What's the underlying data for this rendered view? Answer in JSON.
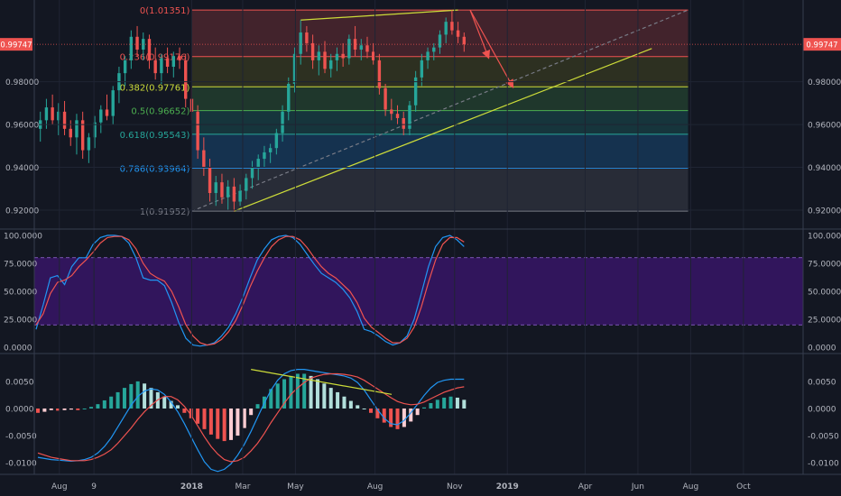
{
  "chart_data": [
    {
      "type": "candlestick",
      "panel": "price",
      "title": "",
      "yticks": [
        "0.98000",
        "0.96000",
        "0.94000",
        "0.92000"
      ],
      "ylim": [
        0.912,
        1.0165
      ],
      "last_price_label": "0.99747",
      "last_price": 0.99747,
      "up_color": "#26a69a",
      "down_color": "#ef5350",
      "fib_levels": [
        {
          "ratio": 0,
          "value": 1.01351,
          "label": "0(1.01351)",
          "color": "#ef5350"
        },
        {
          "ratio": 0.236,
          "value": 0.99176,
          "label": "0.236(0.99176)",
          "color": "#ef5350"
        },
        {
          "ratio": 0.382,
          "value": 0.97761,
          "label": "0.382(0.97761)",
          "color": "#cddc39"
        },
        {
          "ratio": 0.5,
          "value": 0.96652,
          "label": "0.5(0.96652)",
          "color": "#4caf50"
        },
        {
          "ratio": 0.618,
          "value": 0.95543,
          "label": "0.618(0.95543)",
          "color": "#26a69a"
        },
        {
          "ratio": 0.786,
          "value": 0.93964,
          "label": "0.786(0.93964)",
          "color": "#2196f3"
        },
        {
          "ratio": 1,
          "value": 0.91952,
          "label": "1(0.91952)",
          "color": "#787b86"
        }
      ],
      "trend_lines": [
        {
          "from": [
            "2018-02-19",
            0.9195
          ],
          "to": [
            "2019-06-17",
            0.9955
          ],
          "color": "#cddc39"
        },
        {
          "from": [
            "2018-05-07",
            1.0088
          ],
          "to": [
            "2018-11-05",
            1.0135
          ],
          "color": "#cddc39"
        },
        {
          "from": [
            "2018-01-01",
            0.9195
          ],
          "to": [
            "2019-07-29",
            1.0135
          ],
          "color": "#787b86",
          "dashed": true
        }
      ],
      "arrows": [
        {
          "from": [
            "2018-11-19",
            1.0135
          ],
          "to": [
            "2018-12-10",
            0.9915
          ]
        },
        {
          "from": [
            "2018-11-19",
            1.0135
          ],
          "to": [
            "2019-01-07",
            0.9778
          ]
        }
      ],
      "candles": [
        {
          "t": "2017-07-10",
          "o": 0.958,
          "h": 0.966,
          "l": 0.952,
          "c": 0.962
        },
        {
          "t": "2017-07-17",
          "o": 0.962,
          "h": 0.972,
          "l": 0.958,
          "c": 0.968
        },
        {
          "t": "2017-07-24",
          "o": 0.968,
          "h": 0.974,
          "l": 0.96,
          "c": 0.962
        },
        {
          "t": "2017-07-31",
          "o": 0.962,
          "h": 0.97,
          "l": 0.955,
          "c": 0.966
        },
        {
          "t": "2017-08-07",
          "o": 0.966,
          "h": 0.971,
          "l": 0.955,
          "c": 0.958
        },
        {
          "t": "2017-08-14",
          "o": 0.958,
          "h": 0.962,
          "l": 0.95,
          "c": 0.954
        },
        {
          "t": "2017-08-21",
          "o": 0.954,
          "h": 0.965,
          "l": 0.946,
          "c": 0.962
        },
        {
          "t": "2017-08-28",
          "o": 0.962,
          "h": 0.966,
          "l": 0.944,
          "c": 0.948
        },
        {
          "t": "2017-09-04",
          "o": 0.948,
          "h": 0.956,
          "l": 0.942,
          "c": 0.954
        },
        {
          "t": "2017-09-11",
          "o": 0.954,
          "h": 0.964,
          "l": 0.949,
          "c": 0.961
        },
        {
          "t": "2017-09-18",
          "o": 0.961,
          "h": 0.969,
          "l": 0.956,
          "c": 0.967
        },
        {
          "t": "2017-09-25",
          "o": 0.967,
          "h": 0.974,
          "l": 0.962,
          "c": 0.964
        },
        {
          "t": "2017-10-02",
          "o": 0.964,
          "h": 0.978,
          "l": 0.96,
          "c": 0.976
        },
        {
          "t": "2017-10-09",
          "o": 0.976,
          "h": 0.987,
          "l": 0.97,
          "c": 0.984
        },
        {
          "t": "2017-10-16",
          "o": 0.984,
          "h": 0.992,
          "l": 0.978,
          "c": 0.99
        },
        {
          "t": "2017-10-23",
          "o": 0.99,
          "h": 1.004,
          "l": 0.986,
          "c": 1.001
        },
        {
          "t": "2017-10-30",
          "o": 1.001,
          "h": 1.006,
          "l": 0.992,
          "c": 0.995
        },
        {
          "t": "2017-11-06",
          "o": 0.995,
          "h": 1.003,
          "l": 0.99,
          "c": 1.0
        },
        {
          "t": "2017-11-13",
          "o": 1.0,
          "h": 1.002,
          "l": 0.986,
          "c": 0.99
        },
        {
          "t": "2017-11-20",
          "o": 0.99,
          "h": 0.996,
          "l": 0.981,
          "c": 0.984
        },
        {
          "t": "2017-11-27",
          "o": 0.984,
          "h": 0.993,
          "l": 0.979,
          "c": 0.991
        },
        {
          "t": "2017-12-04",
          "o": 0.991,
          "h": 0.996,
          "l": 0.984,
          "c": 0.987
        },
        {
          "t": "2017-12-11",
          "o": 0.987,
          "h": 0.994,
          "l": 0.982,
          "c": 0.992
        },
        {
          "t": "2017-12-18",
          "o": 0.992,
          "h": 0.996,
          "l": 0.986,
          "c": 0.99
        },
        {
          "t": "2017-12-25",
          "o": 0.99,
          "h": 0.993,
          "l": 0.968,
          "c": 0.972
        },
        {
          "t": "2018-01-01",
          "o": 0.972,
          "h": 0.978,
          "l": 0.962,
          "c": 0.966
        },
        {
          "t": "2018-01-08",
          "o": 0.966,
          "h": 0.969,
          "l": 0.944,
          "c": 0.948
        },
        {
          "t": "2018-01-15",
          "o": 0.948,
          "h": 0.954,
          "l": 0.936,
          "c": 0.94
        },
        {
          "t": "2018-01-22",
          "o": 0.94,
          "h": 0.944,
          "l": 0.924,
          "c": 0.928
        },
        {
          "t": "2018-01-29",
          "o": 0.928,
          "h": 0.936,
          "l": 0.922,
          "c": 0.933
        },
        {
          "t": "2018-02-05",
          "o": 0.933,
          "h": 0.937,
          "l": 0.923,
          "c": 0.926
        },
        {
          "t": "2018-02-12",
          "o": 0.926,
          "h": 0.934,
          "l": 0.92,
          "c": 0.931
        },
        {
          "t": "2018-02-19",
          "o": 0.931,
          "h": 0.935,
          "l": 0.9195,
          "c": 0.924
        },
        {
          "t": "2018-02-26",
          "o": 0.924,
          "h": 0.932,
          "l": 0.922,
          "c": 0.929
        },
        {
          "t": "2018-03-05",
          "o": 0.929,
          "h": 0.937,
          "l": 0.925,
          "c": 0.935
        },
        {
          "t": "2018-03-12",
          "o": 0.935,
          "h": 0.943,
          "l": 0.93,
          "c": 0.94
        },
        {
          "t": "2018-03-19",
          "o": 0.94,
          "h": 0.946,
          "l": 0.934,
          "c": 0.944
        },
        {
          "t": "2018-03-26",
          "o": 0.944,
          "h": 0.95,
          "l": 0.94,
          "c": 0.947
        },
        {
          "t": "2018-04-02",
          "o": 0.947,
          "h": 0.951,
          "l": 0.942,
          "c": 0.949
        },
        {
          "t": "2018-04-09",
          "o": 0.949,
          "h": 0.958,
          "l": 0.946,
          "c": 0.956
        },
        {
          "t": "2018-04-16",
          "o": 0.956,
          "h": 0.969,
          "l": 0.952,
          "c": 0.966
        },
        {
          "t": "2018-04-23",
          "o": 0.966,
          "h": 0.982,
          "l": 0.962,
          "c": 0.979
        },
        {
          "t": "2018-04-30",
          "o": 0.979,
          "h": 0.996,
          "l": 0.975,
          "c": 0.993
        },
        {
          "t": "2018-05-07",
          "o": 0.993,
          "h": 1.0088,
          "l": 0.988,
          "c": 1.003
        },
        {
          "t": "2018-05-14",
          "o": 1.003,
          "h": 1.006,
          "l": 0.994,
          "c": 0.998
        },
        {
          "t": "2018-05-21",
          "o": 0.998,
          "h": 1.002,
          "l": 0.986,
          "c": 0.99
        },
        {
          "t": "2018-05-28",
          "o": 0.99,
          "h": 0.997,
          "l": 0.983,
          "c": 0.994
        },
        {
          "t": "2018-06-04",
          "o": 0.994,
          "h": 0.999,
          "l": 0.984,
          "c": 0.986
        },
        {
          "t": "2018-06-11",
          "o": 0.986,
          "h": 0.993,
          "l": 0.982,
          "c": 0.99
        },
        {
          "t": "2018-06-18",
          "o": 0.99,
          "h": 0.996,
          "l": 0.985,
          "c": 0.993
        },
        {
          "t": "2018-06-25",
          "o": 0.993,
          "h": 0.998,
          "l": 0.987,
          "c": 0.991
        },
        {
          "t": "2018-07-02",
          "o": 0.991,
          "h": 1.002,
          "l": 0.988,
          "c": 1.0
        },
        {
          "t": "2018-07-09",
          "o": 1.0,
          "h": 1.006,
          "l": 0.992,
          "c": 0.995
        },
        {
          "t": "2018-07-16",
          "o": 0.995,
          "h": 1.0,
          "l": 0.99,
          "c": 0.997
        },
        {
          "t": "2018-07-23",
          "o": 0.997,
          "h": 1.001,
          "l": 0.991,
          "c": 0.994
        },
        {
          "t": "2018-07-30",
          "o": 0.994,
          "h": 0.998,
          "l": 0.988,
          "c": 0.99
        },
        {
          "t": "2018-08-06",
          "o": 0.99,
          "h": 0.993,
          "l": 0.974,
          "c": 0.977
        },
        {
          "t": "2018-08-13",
          "o": 0.977,
          "h": 0.979,
          "l": 0.964,
          "c": 0.967
        },
        {
          "t": "2018-08-20",
          "o": 0.967,
          "h": 0.972,
          "l": 0.962,
          "c": 0.965
        },
        {
          "t": "2018-08-27",
          "o": 0.965,
          "h": 0.969,
          "l": 0.96,
          "c": 0.963
        },
        {
          "t": "2018-09-03",
          "o": 0.963,
          "h": 0.966,
          "l": 0.955,
          "c": 0.958
        },
        {
          "t": "2018-09-10",
          "o": 0.958,
          "h": 0.971,
          "l": 0.955,
          "c": 0.969
        },
        {
          "t": "2018-09-17",
          "o": 0.969,
          "h": 0.985,
          "l": 0.966,
          "c": 0.982
        },
        {
          "t": "2018-09-24",
          "o": 0.982,
          "h": 0.993,
          "l": 0.978,
          "c": 0.99
        },
        {
          "t": "2018-10-01",
          "o": 0.99,
          "h": 0.996,
          "l": 0.986,
          "c": 0.994
        },
        {
          "t": "2018-10-08",
          "o": 0.994,
          "h": 0.998,
          "l": 0.99,
          "c": 0.996
        },
        {
          "t": "2018-10-15",
          "o": 0.996,
          "h": 1.004,
          "l": 0.993,
          "c": 1.002
        },
        {
          "t": "2018-10-22",
          "o": 1.002,
          "h": 1.01,
          "l": 0.998,
          "c": 1.008
        },
        {
          "t": "2018-10-29",
          "o": 1.008,
          "h": 1.0135,
          "l": 1.002,
          "c": 1.004
        },
        {
          "t": "2018-11-05",
          "o": 1.004,
          "h": 1.008,
          "l": 0.998,
          "c": 1.001
        },
        {
          "t": "2018-11-12",
          "o": 1.001,
          "h": 1.003,
          "l": 0.994,
          "c": 0.9975
        }
      ]
    },
    {
      "type": "line",
      "panel": "stochastic",
      "yticks": [
        "100.0000",
        "75.0000",
        "50.0000",
        "25.0000",
        "0.0000"
      ],
      "ylim": [
        -4,
        104
      ],
      "bands": [
        20,
        80
      ],
      "band_color": "#4a148c",
      "series": [
        {
          "color": "#2196f3",
          "values": [
            16,
            38,
            62,
            64,
            56,
            72,
            80,
            80,
            92,
            98,
            100,
            100,
            99,
            93,
            80,
            62,
            60,
            60,
            55,
            40,
            22,
            8,
            2,
            1,
            2,
            4,
            10,
            18,
            30,
            45,
            62,
            78,
            88,
            96,
            99,
            100,
            98,
            92,
            83,
            74,
            66,
            62,
            58,
            52,
            44,
            32,
            16,
            14,
            10,
            5,
            2,
            4,
            10,
            25,
            48,
            72,
            90,
            98,
            100,
            96,
            90
          ]
        },
        {
          "color": "#ef5350",
          "values": [
            20,
            30,
            48,
            58,
            60,
            64,
            72,
            78,
            85,
            93,
            98,
            99,
            99,
            96,
            88,
            75,
            66,
            62,
            59,
            50,
            36,
            20,
            10,
            4,
            2,
            3,
            7,
            14,
            24,
            38,
            54,
            68,
            80,
            90,
            96,
            99,
            99,
            96,
            89,
            80,
            72,
            66,
            62,
            56,
            50,
            40,
            26,
            18,
            13,
            8,
            4,
            4,
            8,
            18,
            36,
            58,
            78,
            92,
            98,
            98,
            94
          ]
        }
      ]
    },
    {
      "type": "histogram+line",
      "panel": "macd",
      "yticks": [
        "0.0050",
        "0.0000",
        "-0.0050",
        "-0.0100"
      ],
      "ylim": [
        -0.0118,
        0.0098
      ],
      "histogram": [
        -0.0008,
        -0.0006,
        -0.0003,
        -0.0004,
        -0.0003,
        -0.0002,
        -0.0003,
        0.0,
        0.0003,
        0.0008,
        0.0015,
        0.0022,
        0.003,
        0.0038,
        0.0045,
        0.005,
        0.0046,
        0.0038,
        0.003,
        0.0022,
        0.0014,
        0.0006,
        -0.0008,
        -0.0018,
        -0.0028,
        -0.0038,
        -0.0048,
        -0.0056,
        -0.006,
        -0.0058,
        -0.005,
        -0.0036,
        -0.0012,
        0.0008,
        0.0022,
        0.0036,
        0.0046,
        0.0054,
        0.006,
        0.0064,
        0.0064,
        0.006,
        0.0054,
        0.0046,
        0.0038,
        0.003,
        0.0022,
        0.0014,
        0.0006,
        0.0,
        -0.0008,
        -0.0018,
        -0.0026,
        -0.0034,
        -0.0038,
        -0.0034,
        -0.0024,
        -0.0012,
        0.0002,
        0.001,
        0.0016,
        0.002,
        0.0022,
        0.002,
        0.0016
      ],
      "series": [
        {
          "color": "#2196f3",
          "values": [
            -0.009,
            -0.0092,
            -0.0094,
            -0.0095,
            -0.0096,
            -0.0097,
            -0.0096,
            -0.0094,
            -0.009,
            -0.0082,
            -0.007,
            -0.0054,
            -0.0034,
            -0.0014,
            0.0006,
            0.0022,
            0.0032,
            0.0036,
            0.0034,
            0.0026,
            0.0012,
            -0.0006,
            -0.0028,
            -0.0052,
            -0.0076,
            -0.0098,
            -0.0112,
            -0.0116,
            -0.0112,
            -0.0102,
            -0.0086,
            -0.0066,
            -0.0042,
            -0.0016,
            0.001,
            0.0034,
            0.0052,
            0.0064,
            0.007,
            0.0072,
            0.0072,
            0.007,
            0.0068,
            0.0066,
            0.0064,
            0.0062,
            0.006,
            0.0056,
            0.0048,
            0.0034,
            0.0016,
            -0.0002,
            -0.0018,
            -0.0028,
            -0.003,
            -0.0022,
            -0.0008,
            0.0008,
            0.0024,
            0.0038,
            0.0048,
            0.0052,
            0.0054,
            0.0054,
            0.0054
          ]
        },
        {
          "color": "#ef5350",
          "values": [
            -0.0082,
            -0.0086,
            -0.009,
            -0.0092,
            -0.0094,
            -0.0096,
            -0.0096,
            -0.0096,
            -0.0094,
            -0.009,
            -0.0084,
            -0.0076,
            -0.0064,
            -0.005,
            -0.0036,
            -0.002,
            -0.0006,
            0.0006,
            0.0016,
            0.0022,
            0.0022,
            0.0016,
            0.0004,
            -0.0012,
            -0.0032,
            -0.0052,
            -0.007,
            -0.0084,
            -0.0094,
            -0.0098,
            -0.0096,
            -0.009,
            -0.0078,
            -0.0064,
            -0.0046,
            -0.0026,
            -0.0008,
            0.001,
            0.0026,
            0.0038,
            0.0048,
            0.0056,
            0.006,
            0.0063,
            0.0064,
            0.0064,
            0.0063,
            0.0061,
            0.0058,
            0.0052,
            0.0044,
            0.0036,
            0.0028,
            0.002,
            0.0013,
            0.0009,
            0.0007,
            0.0008,
            0.0012,
            0.0018,
            0.0024,
            0.003,
            0.0034,
            0.0038,
            0.004
          ]
        }
      ],
      "trend_lines": [
        {
          "from": [
            0.5,
            0.0072
          ],
          "to": [
            0.83,
            0.0026
          ]
        }
      ]
    }
  ],
  "x_axis": {
    "labels": [
      "Aug",
      "9",
      "2018",
      "Mar",
      "May",
      "Aug",
      "Nov",
      "2019",
      "Apr",
      "Jun",
      "Aug",
      "Oct"
    ],
    "label_dates": [
      "2017-08-01",
      "2017-09-10",
      "2018-01-01",
      "2018-03-01",
      "2018-05-01",
      "2018-08-01",
      "2018-11-01",
      "2019-01-01",
      "2019-04-01",
      "2019-06-01",
      "2019-08-01",
      "2019-10-01"
    ],
    "range": [
      "2017-07-03",
      "2019-12-09"
    ]
  }
}
